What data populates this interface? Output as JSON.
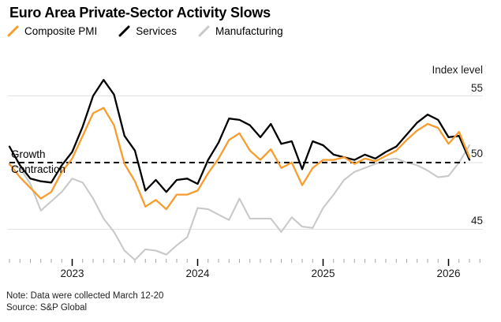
{
  "title": "Euro Area Private-Sector Activity Slows",
  "legend": [
    {
      "label": "Composite PMI",
      "color": "#F79C2D"
    },
    {
      "label": "Services",
      "color": "#000000"
    },
    {
      "label": "Manufacturing",
      "color": "#C9C9C9"
    }
  ],
  "axis": {
    "y_label": "Index level",
    "y_ticks": [
      55,
      50,
      45
    ],
    "x_ticks": [
      "2023",
      "2024",
      "2025",
      "2026"
    ]
  },
  "annotations": {
    "above": "Growth",
    "below": "Contraction",
    "threshold_value": 50
  },
  "note": "Note: Data were collected March 12-20",
  "source": "Source: S&P Global",
  "colors": {
    "composite": "#F79C2D",
    "services": "#000000",
    "manufacturing": "#C9C9C9",
    "gridline": "#E2E2E2",
    "threshold": "#000000",
    "minor_tick": "#A6A6A6",
    "major_tick": "#000000"
  },
  "chart_data": {
    "type": "line",
    "x": [
      "2022-07",
      "2022-08",
      "2022-09",
      "2022-10",
      "2022-11",
      "2022-12",
      "2023-01",
      "2023-02",
      "2023-03",
      "2023-04",
      "2023-05",
      "2023-06",
      "2023-07",
      "2023-08",
      "2023-09",
      "2023-10",
      "2023-11",
      "2023-12",
      "2024-01",
      "2024-02",
      "2024-03",
      "2024-04",
      "2024-05",
      "2024-06",
      "2024-07",
      "2024-08",
      "2024-09",
      "2024-10",
      "2024-11",
      "2024-12",
      "2025-01",
      "2025-02",
      "2025-03",
      "2025-04",
      "2025-05",
      "2025-06",
      "2025-07",
      "2025-08",
      "2025-09",
      "2025-10",
      "2025-11",
      "2025-12",
      "2026-01",
      "2026-02",
      "2026-03"
    ],
    "series": [
      {
        "name": "Manufacturing",
        "color": "#C9C9C9",
        "values": [
          49.8,
          49.6,
          48.4,
          46.4,
          47.1,
          47.8,
          48.8,
          48.5,
          47.3,
          45.8,
          44.8,
          43.4,
          42.7,
          43.5,
          43.4,
          43.1,
          43.8,
          44.4,
          46.6,
          46.5,
          46.1,
          45.7,
          47.3,
          45.8,
          45.8,
          45.8,
          44.8,
          45.9,
          45.2,
          45.1,
          46.6,
          47.6,
          48.7,
          49.3,
          49.6,
          49.9,
          50.2,
          50.3,
          50.0,
          49.8,
          49.4,
          48.9,
          49.0,
          50.0,
          51.3
        ]
      },
      {
        "name": "Services",
        "color": "#000000",
        "values": [
          51.2,
          49.8,
          48.8,
          48.6,
          48.5,
          49.8,
          50.8,
          52.7,
          55.0,
          56.2,
          55.1,
          52.0,
          50.9,
          47.9,
          48.7,
          47.8,
          48.7,
          48.8,
          48.4,
          50.2,
          51.5,
          53.3,
          53.2,
          52.8,
          51.9,
          52.9,
          51.4,
          51.6,
          49.5,
          51.6,
          51.3,
          50.6,
          50.4,
          50.2,
          50.6,
          50.3,
          50.8,
          51.2,
          52.1,
          53.0,
          53.6,
          53.2,
          51.9,
          52.0,
          50.2
        ]
      },
      {
        "name": "Composite PMI",
        "color": "#F79C2D",
        "values": [
          49.9,
          48.9,
          48.1,
          47.3,
          47.8,
          49.3,
          50.3,
          52.0,
          53.7,
          54.1,
          52.8,
          49.9,
          48.6,
          46.7,
          47.2,
          46.5,
          47.6,
          47.6,
          47.9,
          49.2,
          50.3,
          51.7,
          52.2,
          50.9,
          50.2,
          51.0,
          49.6,
          50.0,
          48.3,
          49.6,
          50.2,
          50.2,
          50.4,
          49.9,
          50.3,
          50.1,
          50.5,
          50.9,
          51.7,
          52.4,
          52.9,
          52.6,
          51.4,
          52.3,
          50.4
        ]
      }
    ],
    "ylim": [
      42.5,
      56.5
    ],
    "y_ticks": [
      45,
      50,
      55
    ],
    "x_year_ticks": [
      "2023",
      "2024",
      "2025",
      "2026"
    ],
    "ylabel": "Index level",
    "threshold": {
      "value": 50,
      "style": "dashed",
      "label_above": "Growth",
      "label_below": "Contraction"
    },
    "grid": "horizontal",
    "legend_position": "top-left"
  }
}
